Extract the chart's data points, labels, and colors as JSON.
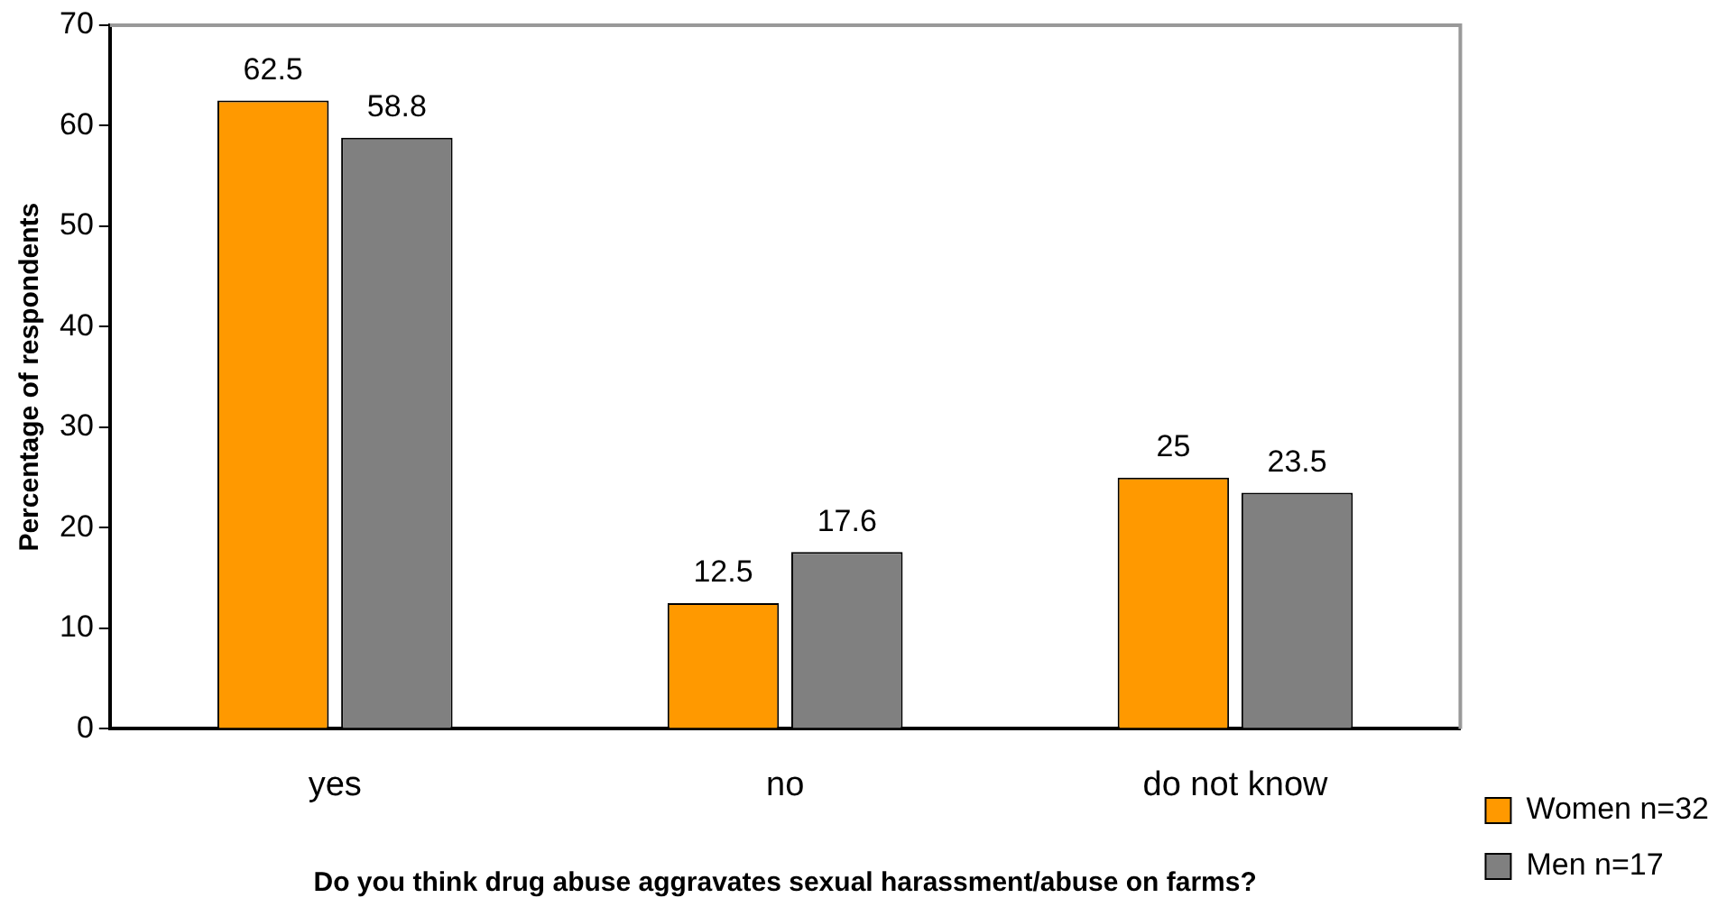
{
  "chart_data": {
    "type": "bar",
    "xlabel": "Do you think drug abuse aggravates sexual harassment/abuse on farms?",
    "ylabel": "Percentage of respondents",
    "categories": [
      "yes",
      "no",
      "do not know"
    ],
    "series": [
      {
        "name": "Women n=32",
        "color": "#ff9900",
        "values": [
          62.5,
          12.5,
          25
        ]
      },
      {
        "name": "Men n=17",
        "color": "#808080",
        "values": [
          58.8,
          17.6,
          23.5
        ]
      }
    ],
    "ylim": [
      0,
      70
    ],
    "yticks": [
      0,
      10,
      20,
      30,
      40,
      50,
      60,
      70
    ],
    "data_labels": true,
    "grid": false,
    "legend": "right"
  }
}
